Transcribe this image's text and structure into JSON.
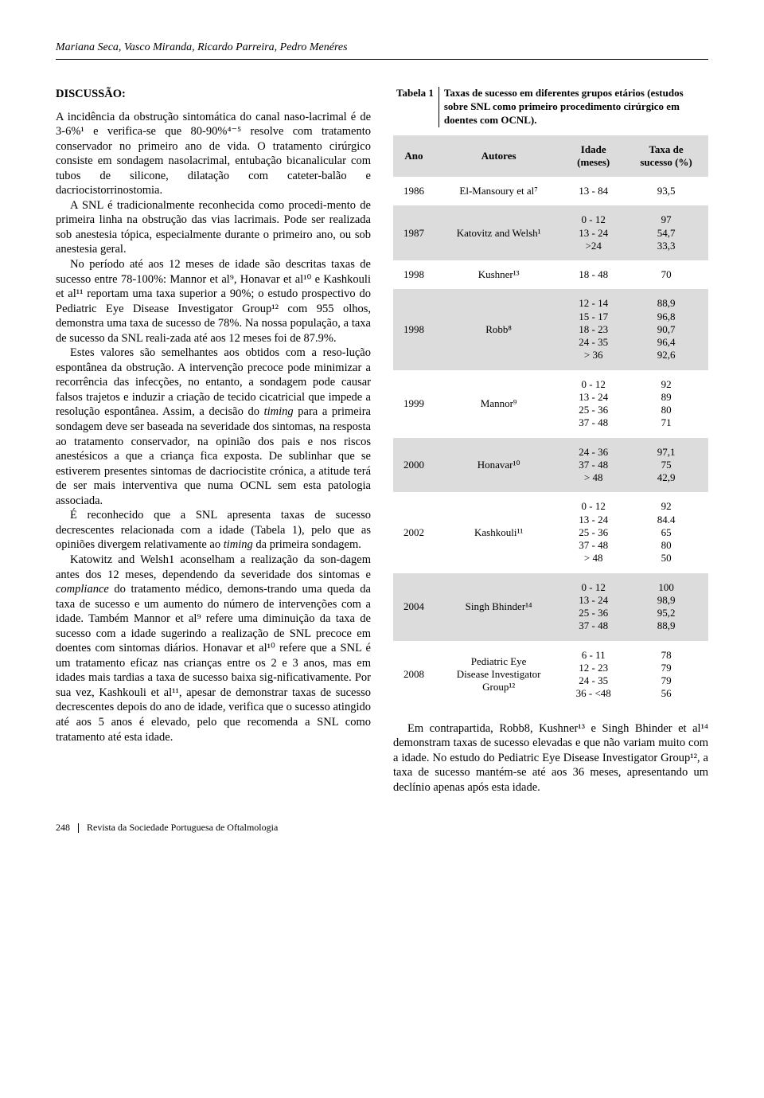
{
  "authors": "Mariana Seca, Vasco Miranda, Ricardo Parreira, Pedro Menéres",
  "section_title": "DISCUSSÃO:",
  "paragraphs": {
    "p1": "A incidência da obstrução sintomática do canal naso-lacrimal é de 3-6%¹ e verifica-se que 80-90%⁴⁻⁵ resolve com tratamento conservador no primeiro ano de vida. O tratamento cirúrgico consiste em sondagem nasolacrimal, entubação bicanalicular com tubos de silicone, dilatação com cateter-balão e dacriocistorrinostomia.",
    "p2": "A SNL é tradicionalmente reconhecida como procedi-mento de primeira linha na obstrução das vias lacrimais. Pode ser realizada sob anestesia tópica, especialmente durante o primeiro ano, ou sob anestesia geral.",
    "p3": "No período até aos 12 meses de idade são descritas taxas de sucesso entre 78-100%: Mannor et al⁹, Honavar et al¹⁰ e Kashkouli et al¹¹ reportam uma taxa superior a 90%; o estudo prospectivo do Pediatric Eye Disease Investigator Group¹² com 955 olhos, demonstra uma taxa de sucesso de 78%. Na nossa população, a taxa de sucesso da SNL reali-zada até aos 12 meses foi de 87.9%.",
    "p4_a": "Estes valores são semelhantes aos obtidos com a reso-lução espontânea da obstrução. A intervenção precoce pode minimizar a recorrência das infecções, no entanto, a sondagem pode causar falsos trajetos e induzir a criação de tecido cicatricial que impede a resolução espontânea. Assim, a decisão do ",
    "p4_i1": "timing",
    "p4_b": " para a primeira sondagem deve ser baseada na severidade dos sintomas, na resposta ao tratamento conservador, na opinião dos pais e nos riscos anestésicos a que a criança fica exposta. De sublinhar que se estiverem presentes sintomas de dacriocistite crónica, a atitude terá de ser mais interventiva que numa OCNL sem esta patologia associada.",
    "p5_a": "É reconhecido que a SNL apresenta taxas de sucesso decrescentes relacionada com a idade (Tabela 1), pelo que as opiniões divergem relativamente ao ",
    "p5_i1": "timing",
    "p5_b": " da primeira sondagem.",
    "p6_a": "Katowitz and Welsh1 aconselham a realização da son-dagem antes dos 12 meses, dependendo da severidade dos sintomas e ",
    "p6_i1": "compliance",
    "p6_b": " do tratamento médico, demons-trando uma queda da taxa de sucesso e um aumento do número de intervenções com a idade. Também Mannor et al⁹ refere uma diminuição da taxa de sucesso com a idade sugerindo a realização de SNL precoce em doentes com sintomas diários. Honavar et al¹⁰ refere que a SNL é um tratamento eficaz nas crianças entre os 2 e 3 anos, mas em idades mais tardias a taxa de sucesso baixa sig-nificativamente. Por sua vez, Kashkouli et al¹¹, apesar de demonstrar taxas de sucesso decrescentes depois do ano de idade, verifica que o sucesso atingido até aos 5 anos é elevado, pelo que recomenda a SNL como tratamento até esta idade."
  },
  "table": {
    "caption_label": "Tabela 1",
    "caption_body": "Taxas de sucesso em diferentes grupos etários (estudos sobre SNL como primeiro procedimento cirúrgico em doentes com OCNL).",
    "headers": {
      "ano": "Ano",
      "autores": "Autores",
      "idade": "Idade\n(meses)",
      "taxa": "Taxa de\nsucesso (%)"
    },
    "rows": [
      {
        "ano": "1986",
        "autor": "El-Mansoury et al⁷",
        "idade": "13 - 84",
        "taxa": "93,5",
        "shade": false
      },
      {
        "ano": "1987",
        "autor": "Katovitz and Welsh¹",
        "idade": "0 - 12\n13 - 24\n>24",
        "taxa": "97\n54,7\n33,3",
        "shade": true
      },
      {
        "ano": "1998",
        "autor": "Kushner¹³",
        "idade": "18 - 48",
        "taxa": "70",
        "shade": false
      },
      {
        "ano": "1998",
        "autor": "Robb⁸",
        "idade": "12 - 14\n15 - 17\n18 - 23\n24 - 35\n> 36",
        "taxa": "88,9\n96,8\n90,7\n96,4\n92,6",
        "shade": true
      },
      {
        "ano": "1999",
        "autor": "Mannor⁹",
        "idade": "0 - 12\n13 - 24\n25 - 36\n37 - 48",
        "taxa": "92\n89\n80\n71",
        "shade": false
      },
      {
        "ano": "2000",
        "autor": "Honavar¹⁰",
        "idade": "24 - 36\n37 - 48\n> 48",
        "taxa": "97,1\n75\n42,9",
        "shade": true
      },
      {
        "ano": "2002",
        "autor": "Kashkouli¹¹",
        "idade": "0 - 12\n13 - 24\n25 - 36\n37 - 48\n> 48",
        "taxa": "92\n84.4\n65\n80\n50",
        "shade": false
      },
      {
        "ano": "2004",
        "autor": "Singh Bhinder¹⁴",
        "idade": "0 - 12\n13 - 24\n25 - 36\n37 - 48",
        "taxa": "100\n98,9\n95,2\n88,9",
        "shade": true
      },
      {
        "ano": "2008",
        "autor": "Pediatric Eye\nDisease Investigator\nGroup¹²",
        "idade": "6 - 11\n12 - 23\n24 - 35\n36 - <48",
        "taxa": "78\n79\n79\n56",
        "shade": false
      }
    ],
    "colors": {
      "shade_bg": "#dcdcdc",
      "page_bg": "#ffffff",
      "text_color": "#000000"
    }
  },
  "right_para": "Em contrapartida, Robb8, Kushner¹³ e Singh Bhinder et al¹⁴ demonstram taxas de sucesso elevadas e que não variam muito com a idade. No estudo do Pediatric Eye Disease Investigator Group¹², a taxa de sucesso mantém-se até aos 36 meses, apresentando um declínio apenas após esta idade.",
  "footer": {
    "page_number": "248",
    "journal": "Revista da Sociedade Portuguesa de Oftalmologia"
  }
}
